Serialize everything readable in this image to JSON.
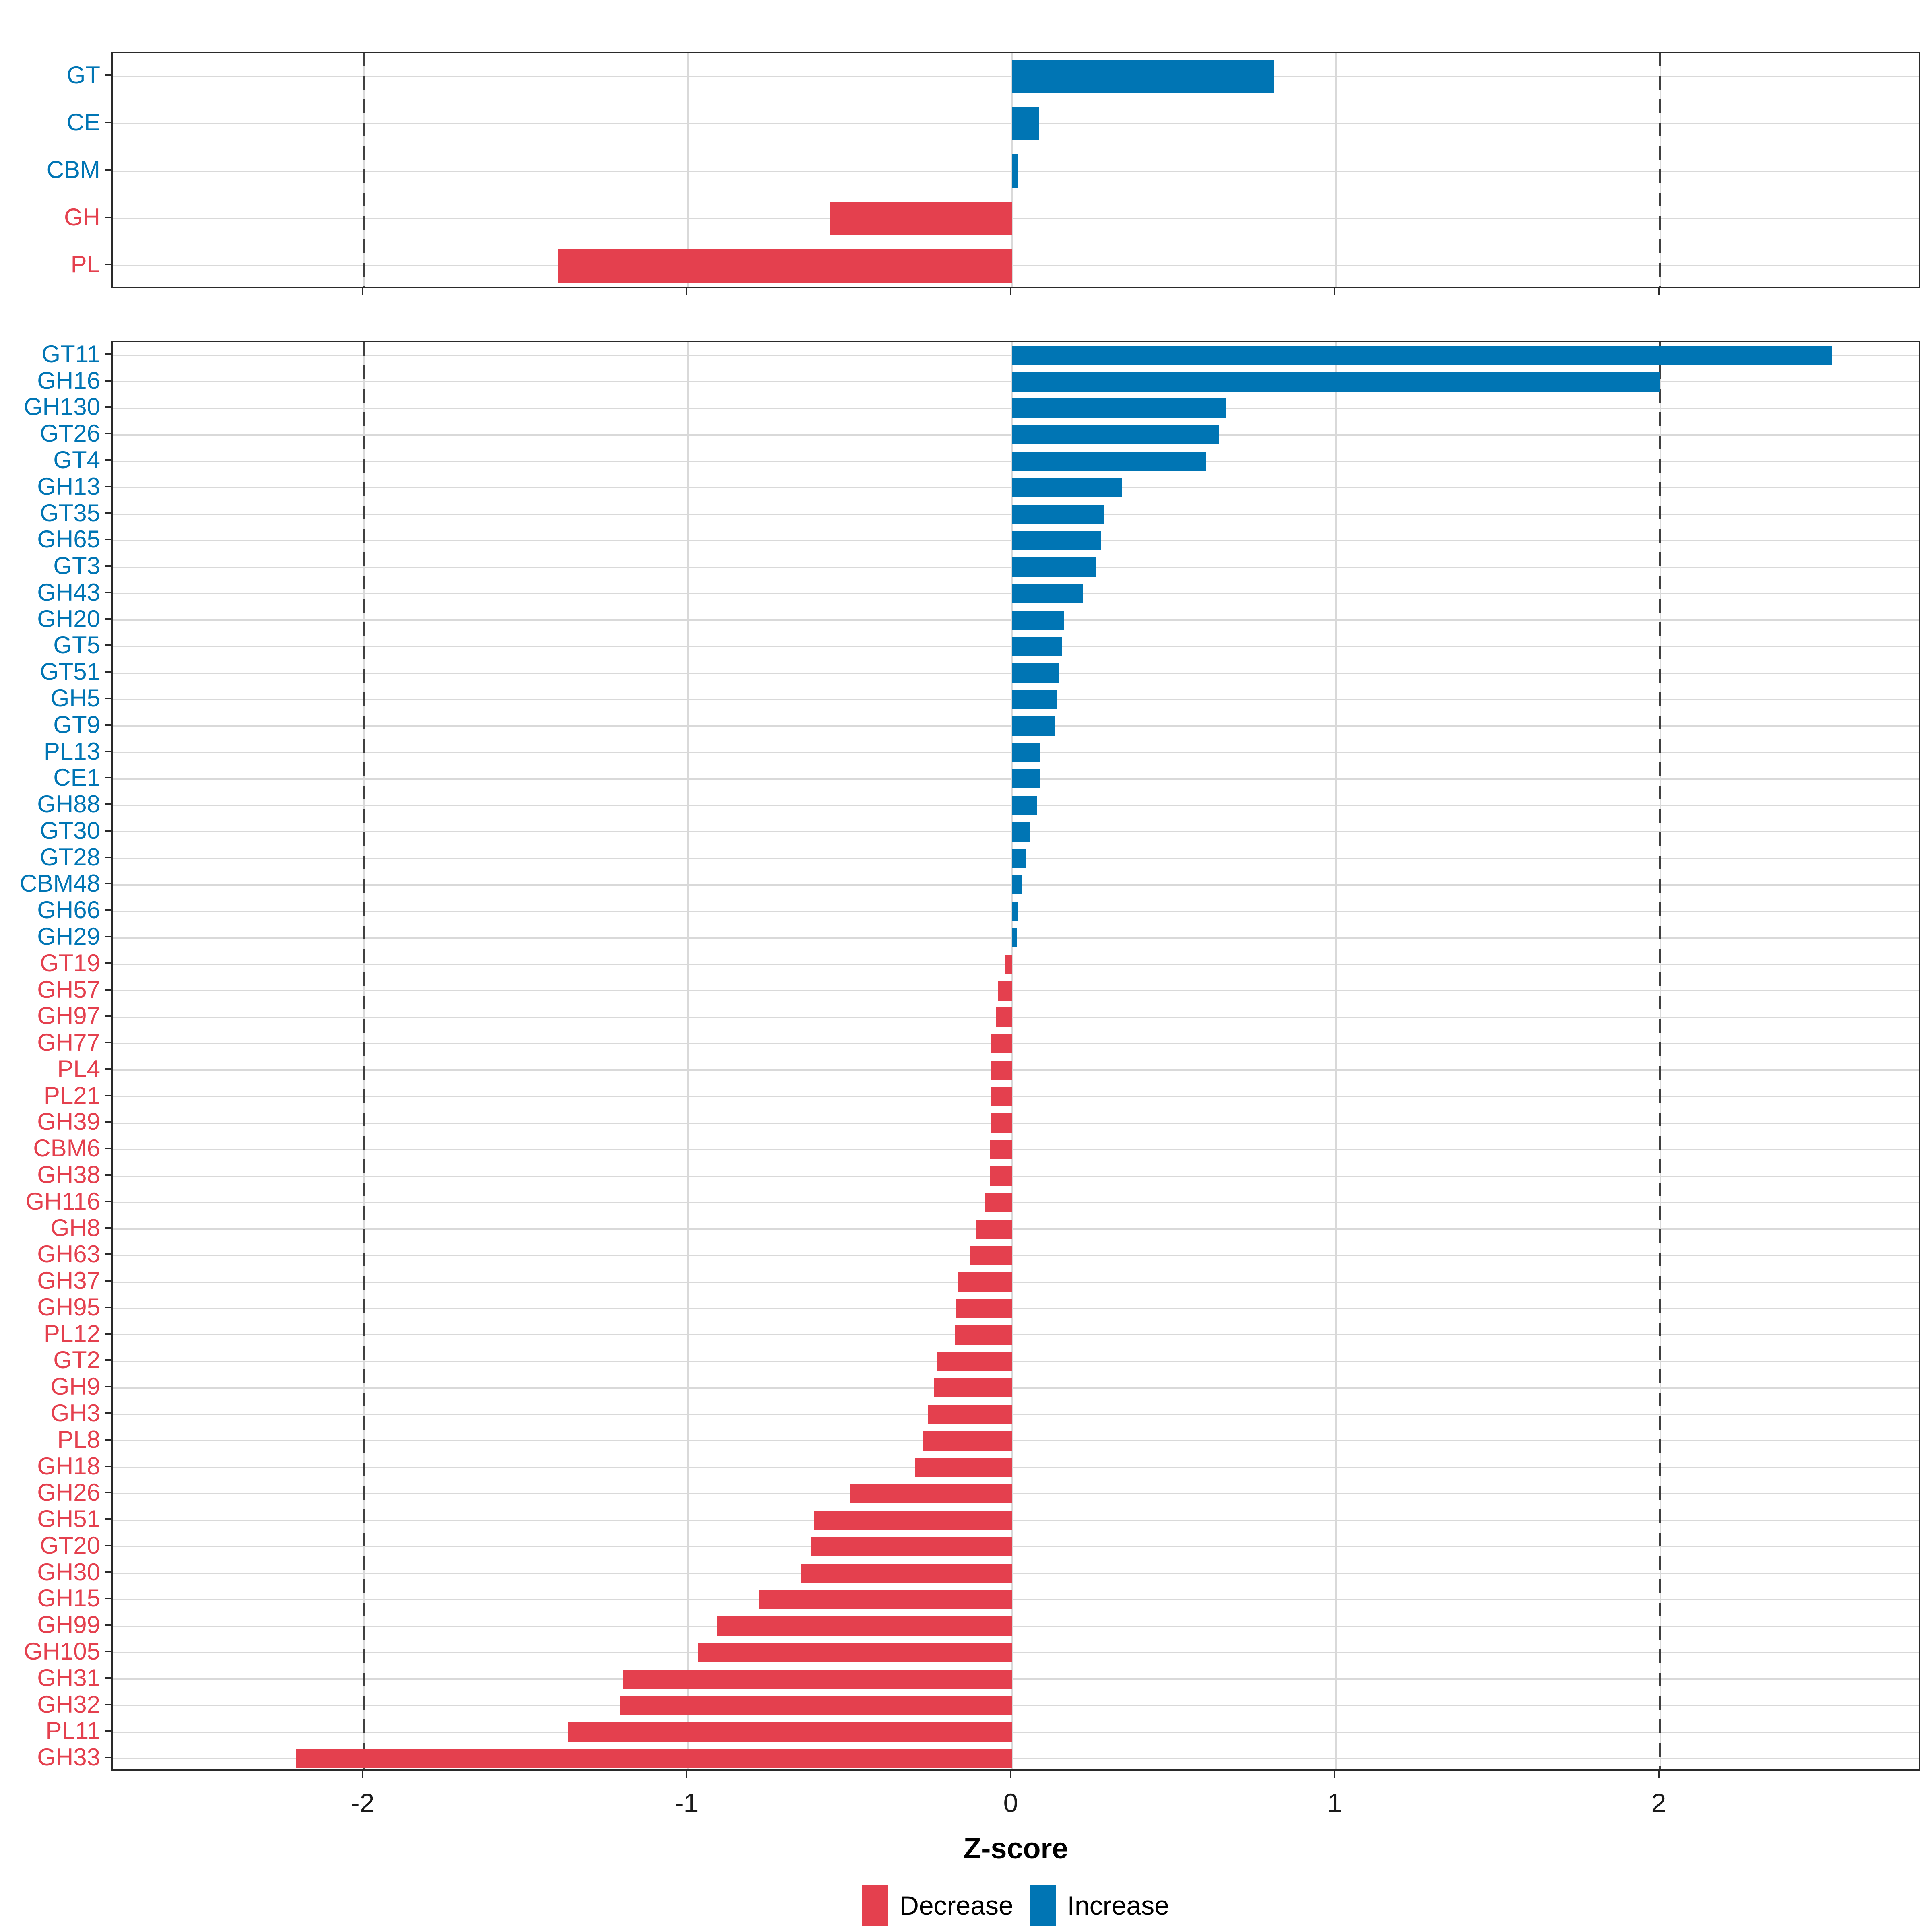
{
  "axis": {
    "title": "Z-score",
    "tick_labels": [
      "-2",
      "-1",
      "0",
      "1",
      "2"
    ],
    "tick_values": [
      -2,
      -1,
      0,
      1,
      2
    ],
    "range": [
      -2.77,
      2.81
    ],
    "dashed_vlines": [
      -2,
      2
    ],
    "grid": "on"
  },
  "legend": {
    "position": "bottom-center",
    "decrease": {
      "label": "Decrease",
      "color": "#E4404E"
    },
    "increase": {
      "label": "Increase",
      "color": "#0075B4"
    }
  },
  "colors": {
    "increase": "#0075B4",
    "decrease": "#E4404E",
    "grid": "#D9D9D9",
    "dashed_line": "#404040",
    "axis_text": "#1A1A1A",
    "panel_border": "#2A2A2A"
  },
  "chart_data": [
    {
      "type": "bar",
      "orientation": "horizontal",
      "panel": "cazyme-classes",
      "categories": [
        "GT",
        "CE",
        "CBM",
        "GH",
        "PL"
      ],
      "values": [
        0.81,
        0.085,
        0.02,
        -0.56,
        -1.4
      ]
    },
    {
      "type": "bar",
      "orientation": "horizontal",
      "panel": "cazyme-families",
      "categories": [
        "GT11",
        "GH16",
        "GH130",
        "GT26",
        "GT4",
        "GH13",
        "GT35",
        "GH65",
        "GT3",
        "GH43",
        "GH20",
        "GT5",
        "GT51",
        "GH5",
        "GT9",
        "PL13",
        "CE1",
        "GH88",
        "GT30",
        "GT28",
        "CBM48",
        "GH66",
        "GH29",
        "GT19",
        "GH57",
        "GH97",
        "GH77",
        "PL4",
        "PL21",
        "GH39",
        "CBM6",
        "GH38",
        "GH116",
        "GH8",
        "GH63",
        "GH37",
        "GH95",
        "PL12",
        "GT2",
        "GH9",
        "GH3",
        "PL8",
        "GH18",
        "GH26",
        "GH51",
        "GT20",
        "GH30",
        "GH15",
        "GH99",
        "GH105",
        "GH31",
        "GH32",
        "PL11",
        "GH33"
      ],
      "values": [
        2.53,
        2.0,
        0.66,
        0.64,
        0.6,
        0.34,
        0.285,
        0.275,
        0.26,
        0.22,
        0.16,
        0.155,
        0.145,
        0.14,
        0.133,
        0.088,
        0.086,
        0.078,
        0.057,
        0.042,
        0.032,
        0.02,
        0.015,
        -0.022,
        -0.042,
        -0.05,
        -0.065,
        -0.065,
        -0.065,
        -0.065,
        -0.068,
        -0.068,
        -0.085,
        -0.11,
        -0.13,
        -0.165,
        -0.172,
        -0.176,
        -0.23,
        -0.24,
        -0.26,
        -0.275,
        -0.3,
        -0.5,
        -0.61,
        -0.62,
        -0.65,
        -0.78,
        -0.91,
        -0.97,
        -1.2,
        -1.21,
        -1.37,
        -2.21
      ]
    }
  ]
}
